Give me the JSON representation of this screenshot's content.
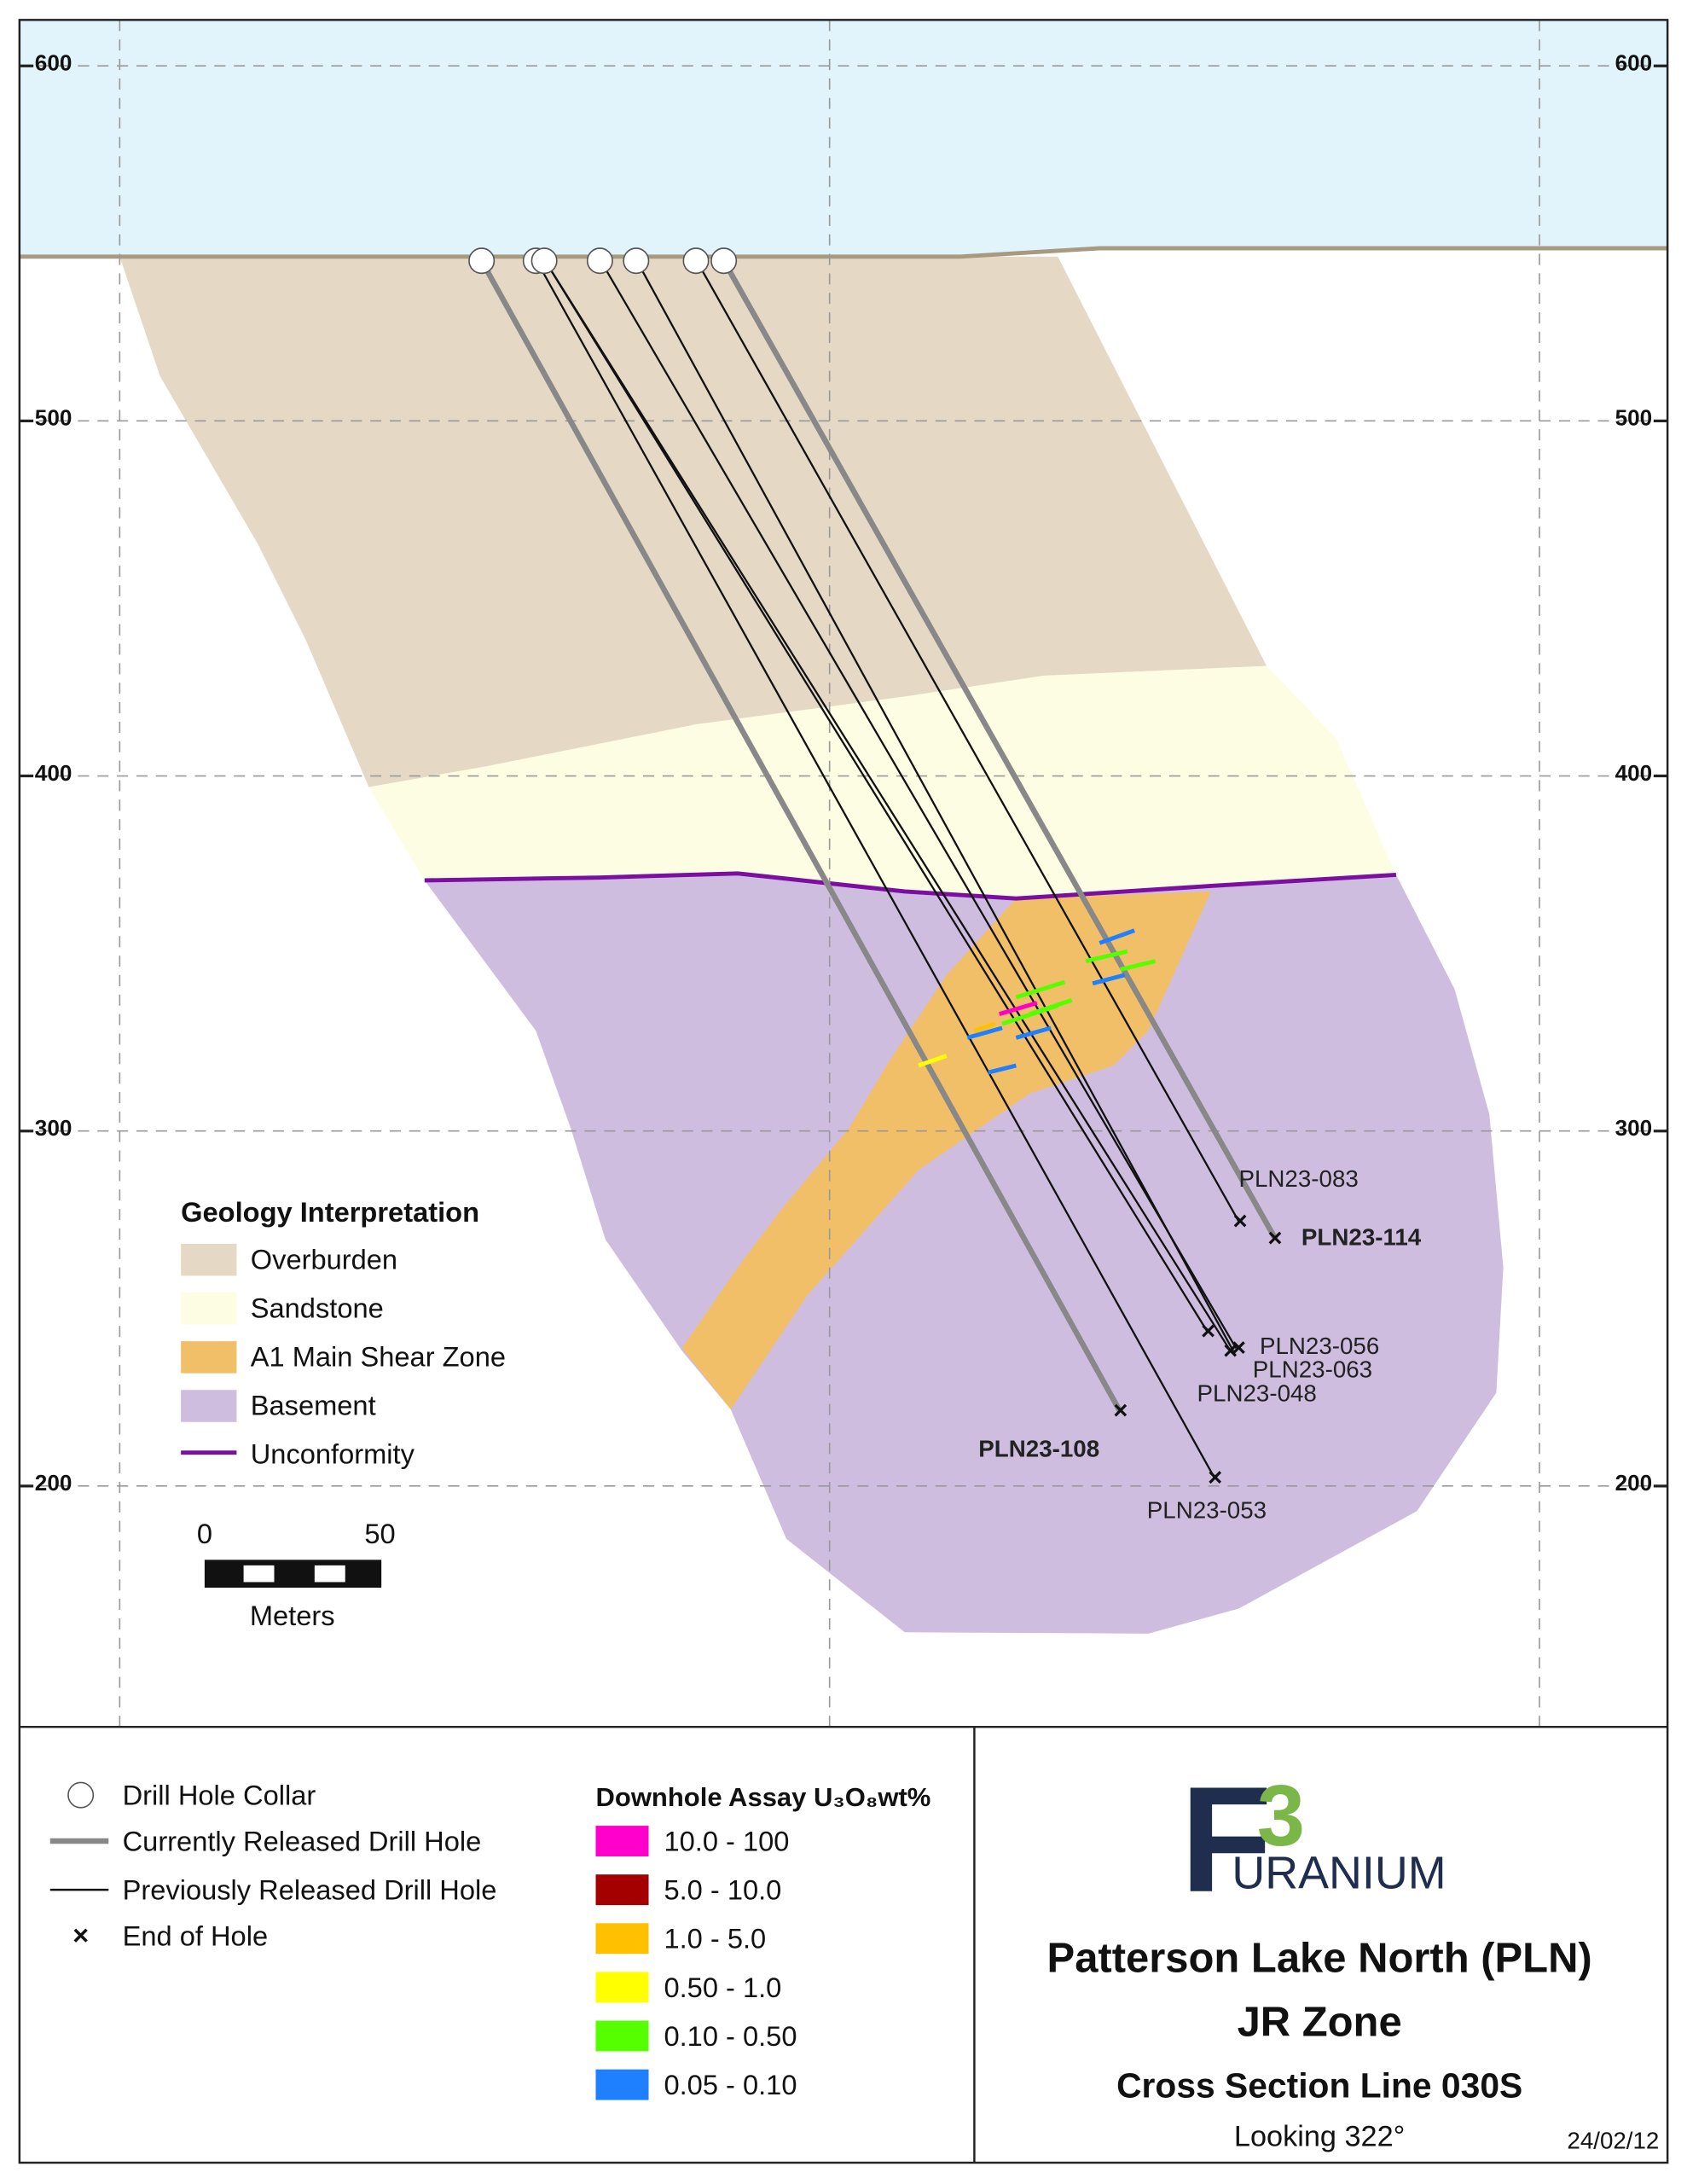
{
  "elevation_axis": {
    "ticks": [
      600,
      500,
      400,
      300,
      200
    ]
  },
  "geology_legend": {
    "title": "Geology Interpretation",
    "items": [
      "Overburden",
      "Sandstone",
      "A1 Main Shear Zone",
      "Basement",
      "Unconformity"
    ]
  },
  "scale_bar": {
    "labels": [
      0,
      50
    ],
    "unit": "Meters"
  },
  "drill_holes": [
    "PLN23-083",
    "PLN23-114",
    "PLN23-056",
    "PLN23-063",
    "PLN23-048",
    "PLN23-108",
    "PLN23-053"
  ],
  "symbol_legend": [
    "Drill Hole Collar",
    "Currently Released Drill Hole",
    "Previously Released Drill Hole",
    "End of Hole"
  ],
  "assay_legend": {
    "title": "Downhole Assay U₃O₈wt%",
    "ranges": [
      "10.0 - 100",
      "5.0 - 10.0",
      "1.0 - 5.0",
      "0.50 - 1.0",
      "0.10 - 0.50",
      "0.05 - 0.10"
    ]
  },
  "logo": {
    "mark": "F",
    "superscript": "3",
    "word": "URANIUM"
  },
  "title_block": {
    "project": "Patterson Lake North (PLN)",
    "zone": "JR Zone",
    "section": "Cross Section Line 030S",
    "view": "Looking 322°",
    "date": "24/02/12"
  }
}
